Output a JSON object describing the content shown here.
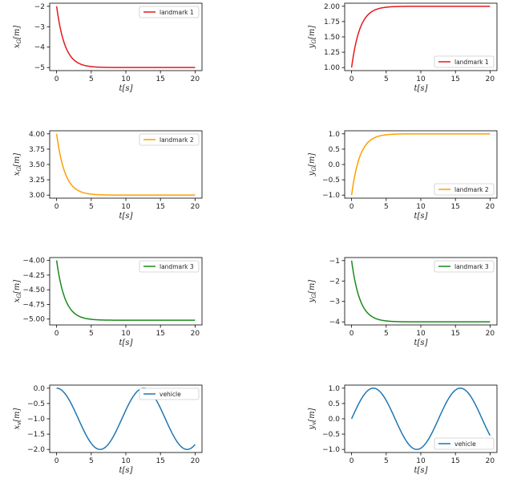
{
  "chart_data": [
    {
      "type": "line",
      "xlabel": "t[s]",
      "ylabel": "x_G[m]",
      "xlim": [
        -1,
        21
      ],
      "ylim": [
        -5.15,
        -1.85
      ],
      "xticks": [
        0,
        5,
        10,
        15,
        20
      ],
      "yticks": [
        -2,
        -3,
        -4,
        -5
      ],
      "ytick_labels": [
        "−2",
        "−3",
        "−4",
        "−5"
      ],
      "legend_position": "top-right",
      "series": [
        {
          "name": "landmark 1",
          "color": "#e41a1c",
          "start": -2,
          "end": -5,
          "tau": 1.2
        }
      ]
    },
    {
      "type": "line",
      "xlabel": "t[s]",
      "ylabel": "y_G[m]",
      "xlim": [
        -1,
        21
      ],
      "ylim": [
        0.95,
        2.05
      ],
      "xticks": [
        0,
        5,
        10,
        15,
        20
      ],
      "yticks": [
        1.0,
        1.25,
        1.5,
        1.75,
        2.0
      ],
      "ytick_labels": [
        "1.00",
        "1.25",
        "1.50",
        "1.75",
        "2.00"
      ],
      "legend_position": "bottom-right",
      "series": [
        {
          "name": "landmark 1",
          "color": "#e41a1c",
          "start": 1,
          "end": 2,
          "tau": 1.2
        }
      ]
    },
    {
      "type": "line",
      "xlabel": "t[s]",
      "ylabel": "x_G[m]",
      "xlim": [
        -1,
        21
      ],
      "ylim": [
        2.95,
        4.05
      ],
      "xticks": [
        0,
        5,
        10,
        15,
        20
      ],
      "yticks": [
        3.0,
        3.25,
        3.5,
        3.75,
        4.0
      ],
      "ytick_labels": [
        "3.00",
        "3.25",
        "3.50",
        "3.75",
        "4.00"
      ],
      "legend_position": "top-right",
      "series": [
        {
          "name": "landmark 2",
          "color": "#ff9f00",
          "start": 4,
          "end": 3,
          "tau": 1.2
        }
      ]
    },
    {
      "type": "line",
      "xlabel": "t[s]",
      "ylabel": "y_G[m]",
      "xlim": [
        -1,
        21
      ],
      "ylim": [
        -1.1,
        1.1
      ],
      "xticks": [
        0,
        5,
        10,
        15,
        20
      ],
      "yticks": [
        1.0,
        0.5,
        0.0,
        -0.5,
        -1.0
      ],
      "ytick_labels": [
        "1.0",
        "0.5",
        "0.0",
        "−0.5",
        "−1.0"
      ],
      "legend_position": "bottom-right",
      "series": [
        {
          "name": "landmark 2",
          "color": "#ff9f00",
          "start": -1,
          "end": 1,
          "tau": 1.2
        }
      ]
    },
    {
      "type": "line",
      "xlabel": "t[s]",
      "ylabel": "x_G[m]",
      "xlim": [
        -1,
        21
      ],
      "ylim": [
        -5.1,
        -3.95
      ],
      "xticks": [
        0,
        5,
        10,
        15,
        20
      ],
      "yticks": [
        -4.0,
        -4.25,
        -4.5,
        -4.75,
        -5.0
      ],
      "ytick_labels": [
        "−4.00",
        "−4.25",
        "−4.50",
        "−4.75",
        "−5.00"
      ],
      "legend_position": "top-right",
      "series": [
        {
          "name": "landmark 3",
          "color": "#1a8a1a",
          "start": -4,
          "end": -5.02,
          "tau": 1.2
        }
      ]
    },
    {
      "type": "line",
      "xlabel": "t[s]",
      "ylabel": "y_G[m]",
      "xlim": [
        -1,
        21
      ],
      "ylim": [
        -4.15,
        -0.85
      ],
      "xticks": [
        0,
        5,
        10,
        15,
        20
      ],
      "yticks": [
        -1,
        -2,
        -3,
        -4
      ],
      "ytick_labels": [
        "−1",
        "−2",
        "−3",
        "−4"
      ],
      "legend_position": "top-right",
      "series": [
        {
          "name": "landmark 3",
          "color": "#1a8a1a",
          "start": -1,
          "end": -4,
          "tau": 1.2
        }
      ]
    },
    {
      "type": "line",
      "xlabel": "t[s]",
      "ylabel": "x_v[m]",
      "xlim": [
        -1,
        21
      ],
      "ylim": [
        -2.1,
        0.1
      ],
      "xticks": [
        0,
        5,
        10,
        15,
        20
      ],
      "yticks": [
        0.0,
        -0.5,
        -1.0,
        -1.5,
        -2.0
      ],
      "ytick_labels": [
        "0.0",
        "−0.5",
        "−1.0",
        "−1.5",
        "−2.0"
      ],
      "legend_position": "top-right",
      "series": [
        {
          "name": "vehicle",
          "color": "#1f77b4",
          "kind": "cos",
          "amp": 1,
          "offset": -1,
          "omega": 0.5
        }
      ]
    },
    {
      "type": "line",
      "xlabel": "t[s]",
      "ylabel": "y_v[m]",
      "xlim": [
        -1,
        21
      ],
      "ylim": [
        -1.1,
        1.1
      ],
      "xticks": [
        0,
        5,
        10,
        15,
        20
      ],
      "yticks": [
        1.0,
        0.5,
        0.0,
        -0.5,
        -1.0
      ],
      "ytick_labels": [
        "1.0",
        "0.5",
        "0.0",
        "−0.5",
        "−1.0"
      ],
      "legend_position": "bottom-right",
      "series": [
        {
          "name": "vehicle",
          "color": "#1f77b4",
          "kind": "sin",
          "amp": 1,
          "offset": 0,
          "omega": 0.5
        }
      ]
    }
  ]
}
